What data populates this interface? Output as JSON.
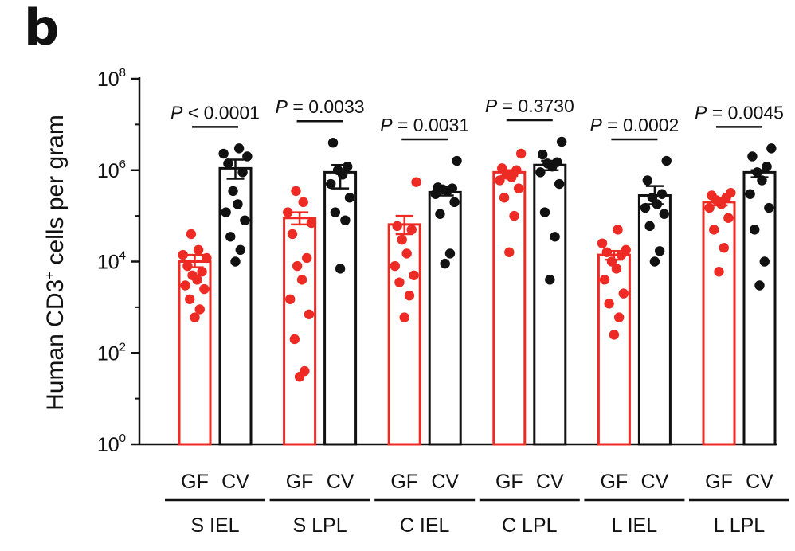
{
  "panel_letter": "b",
  "chart_data": {
    "type": "bar",
    "ylabel_main": "Human CD3",
    "ylabel_sup": "+",
    "ylabel_rest": " cells per gram",
    "yscale": "log10",
    "ylim": [
      1,
      100000000
    ],
    "yticks": [
      {
        "base": "10",
        "exp": "0",
        "value": 1
      },
      {
        "base": "10",
        "exp": "2",
        "value": 100
      },
      {
        "base": "10",
        "exp": "4",
        "value": 10000
      },
      {
        "base": "10",
        "exp": "6",
        "value": 1000000
      },
      {
        "base": "10",
        "exp": "8",
        "value": 100000000
      }
    ],
    "legend": "none",
    "colors": {
      "GF": "#ee2a24",
      "CV": "#111111"
    },
    "groups": [
      {
        "label": "S IEL",
        "p_value": "P < 0.0001",
        "bars": [
          {
            "condition": "GF",
            "mean": 10000,
            "sem": [
              7500,
              14000
            ],
            "points": [
              600,
              900,
              1500,
              2500,
              3000,
              4000,
              5000,
              6000,
              8000,
              12000,
              14000,
              18000,
              40000
            ]
          },
          {
            "condition": "CV",
            "mean": 1100000,
            "sem": [
              650000,
              1700000
            ],
            "points": [
              10000,
              18000,
              35000,
              80000,
              120000,
              180000,
              350000,
              900000,
              1400000,
              2000000,
              2300000,
              3000000
            ]
          }
        ]
      },
      {
        "label": "S LPL",
        "p_value": "P = 0.0033",
        "bars": [
          {
            "condition": "GF",
            "mean": 90000,
            "sem": [
              65000,
              120000
            ],
            "points": [
              30,
              40,
              200,
              700,
              1500,
              4000,
              8000,
              12000,
              40000,
              70000,
              120000,
              200000,
              350000
            ]
          },
          {
            "condition": "CV",
            "mean": 900000,
            "sem": [
              400000,
              1300000
            ],
            "points": [
              7000,
              80000,
              120000,
              250000,
              500000,
              800000,
              1000000,
              1200000,
              4000000
            ]
          }
        ]
      },
      {
        "label": "C IEL",
        "p_value": "P = 0.0031",
        "bars": [
          {
            "condition": "GF",
            "mean": 65000,
            "sem": [
              40000,
              100000
            ],
            "points": [
              600,
              1800,
              3500,
              5000,
              8000,
              15000,
              30000,
              50000,
              60000,
              550000
            ]
          },
          {
            "condition": "CV",
            "mean": 330000,
            "sem": [
              280000,
              420000
            ],
            "points": [
              9000,
              15000,
              110000,
              200000,
              300000,
              350000,
              380000,
              400000,
              420000,
              1600000
            ]
          }
        ]
      },
      {
        "label": "C LPL",
        "p_value": "P = 0.3730",
        "bars": [
          {
            "condition": "GF",
            "mean": 900000,
            "sem": [
              750000,
              1000000
            ],
            "points": [
              16000,
              100000,
              250000,
              400000,
              600000,
              700000,
              800000,
              1000000,
              1100000,
              2300000
            ]
          },
          {
            "condition": "CV",
            "mean": 1300000,
            "sem": [
              1000000,
              1600000
            ],
            "points": [
              4000,
              35000,
              120000,
              500000,
              900000,
              1200000,
              1400000,
              1500000,
              2200000,
              4200000
            ]
          }
        ]
      },
      {
        "label": "L IEL",
        "p_value": "P = 0.0002",
        "bars": [
          {
            "condition": "GF",
            "mean": 14000,
            "sem": [
              11000,
              17000
            ],
            "points": [
              250,
              600,
              1200,
              2000,
              4000,
              7000,
              10000,
              14000,
              16000,
              18000,
              25000,
              50000
            ]
          },
          {
            "condition": "CV",
            "mean": 280000,
            "sem": [
              180000,
              450000
            ],
            "points": [
              10000,
              17000,
              60000,
              110000,
              150000,
              180000,
              250000,
              300000,
              600000,
              1600000
            ]
          }
        ]
      },
      {
        "label": "L LPL",
        "p_value": "P = 0.0045",
        "bars": [
          {
            "condition": "GF",
            "mean": 200000,
            "sem": [
              170000,
              240000
            ],
            "points": [
              6000,
              20000,
              50000,
              90000,
              150000,
              180000,
              220000,
              250000,
              280000,
              320000
            ]
          },
          {
            "condition": "CV",
            "mean": 900000,
            "sem": [
              700000,
              1000000
            ],
            "points": [
              3000,
              10000,
              50000,
              150000,
              300000,
              600000,
              900000,
              1200000,
              2000000,
              3000000
            ]
          }
        ]
      }
    ]
  }
}
